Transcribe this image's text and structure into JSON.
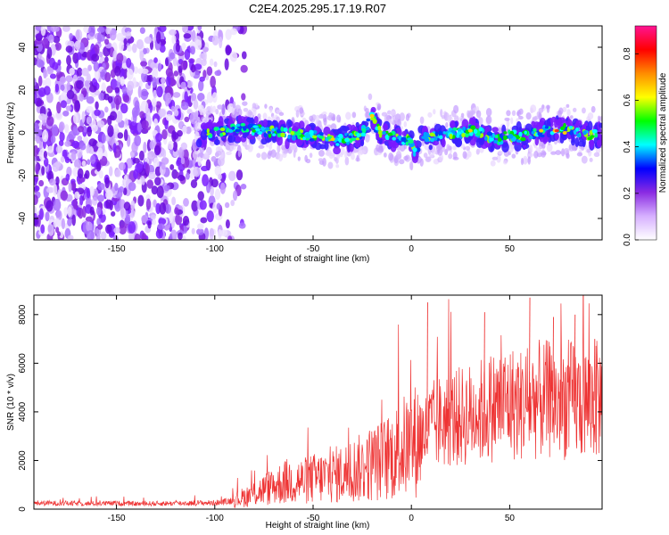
{
  "figure": {
    "title": "C2E4.2025.295.17.19.R07"
  },
  "chart_data": [
    {
      "type": "heatmap",
      "xlabel": "Height of straight line (km)",
      "ylabel": "Frequency (Hz)",
      "xlim": [
        -192,
        97
      ],
      "ylim": [
        -50,
        50
      ],
      "xticks": [
        -150,
        -100,
        -50,
        0,
        50
      ],
      "yticks": [
        -40,
        -20,
        0,
        20,
        40
      ],
      "colorbar": {
        "label": "Normalized spectral amplitude",
        "range": [
          0,
          0.92
        ],
        "ticks": [
          0.0,
          0.2,
          0.4,
          0.6,
          0.8
        ],
        "colors": [
          "#ffffff",
          "#d6b0ff",
          "#8a2be2",
          "#0000ff",
          "#00ffff",
          "#00ff00",
          "#ffff00",
          "#ff8c00",
          "#ff0000",
          "#ff1493"
        ]
      },
      "ridge": {
        "x": [
          -105,
          -95,
          -85,
          -75,
          -65,
          -55,
          -45,
          -40,
          -35,
          -30,
          -25,
          -22,
          -20,
          -18,
          -15,
          -10,
          -5,
          0,
          2,
          5,
          10,
          15,
          20,
          25,
          30,
          35,
          40,
          45,
          50,
          55,
          60,
          65,
          70,
          75,
          80,
          85,
          90,
          95
        ],
        "y": [
          0,
          1,
          2,
          1,
          0,
          -1,
          -2,
          -4,
          -3,
          -2,
          0,
          4,
          9,
          3,
          -1,
          -2,
          -3,
          -4,
          -10,
          -3,
          -2,
          -1,
          0,
          0,
          1,
          0,
          -2,
          -3,
          -1,
          -2,
          -1,
          0,
          1,
          2,
          1,
          0,
          -1,
          -1
        ]
      },
      "legend": "none",
      "grid": false
    },
    {
      "type": "line",
      "xlabel": "Height of straight line (km)",
      "ylabel": "SNR (10 * v/v)",
      "xlim": [
        -192,
        97
      ],
      "ylim": [
        0,
        8800
      ],
      "xticks": [
        -150,
        -100,
        -50,
        0,
        50
      ],
      "yticks": [
        0,
        2000,
        4000,
        6000,
        8000
      ],
      "color": "#ee3333",
      "series": [
        {
          "x": [
            -192,
            -180,
            -170,
            -160,
            -150,
            -140,
            -130,
            -120,
            -110,
            -100,
            -95,
            -90,
            -85,
            -80,
            -75,
            -70,
            -65,
            -60,
            -55,
            -50,
            -45,
            -40,
            -35,
            -30,
            -25,
            -20,
            -15,
            -10,
            -5,
            0,
            5,
            8,
            10,
            15,
            20,
            25,
            30,
            35,
            40,
            45,
            50,
            55,
            60,
            65,
            70,
            75,
            80,
            85,
            90,
            95
          ],
          "values": [
            250,
            240,
            230,
            230,
            240,
            220,
            230,
            240,
            250,
            260,
            300,
            380,
            500,
            650,
            800,
            950,
            1100,
            1200,
            1150,
            1250,
            1300,
            1400,
            1450,
            1600,
            1700,
            1900,
            2000,
            2200,
            2500,
            2700,
            3000,
            3200,
            3400,
            3600,
            3700,
            3800,
            3900,
            4000,
            4200,
            4300,
            4400,
            4300,
            4400,
            4500,
            4500,
            4400,
            4500,
            4400,
            4400,
            4500
          ],
          "peaks": [
            {
              "x": 8,
              "value": 8500
            },
            {
              "x": 37,
              "value": 8100
            },
            {
              "x": 60,
              "value": 8700
            },
            {
              "x": 72,
              "value": 7900
            },
            {
              "x": 83,
              "value": 8000
            },
            {
              "x": 93,
              "value": 7000
            }
          ]
        }
      ],
      "legend": "none",
      "grid": false
    }
  ]
}
